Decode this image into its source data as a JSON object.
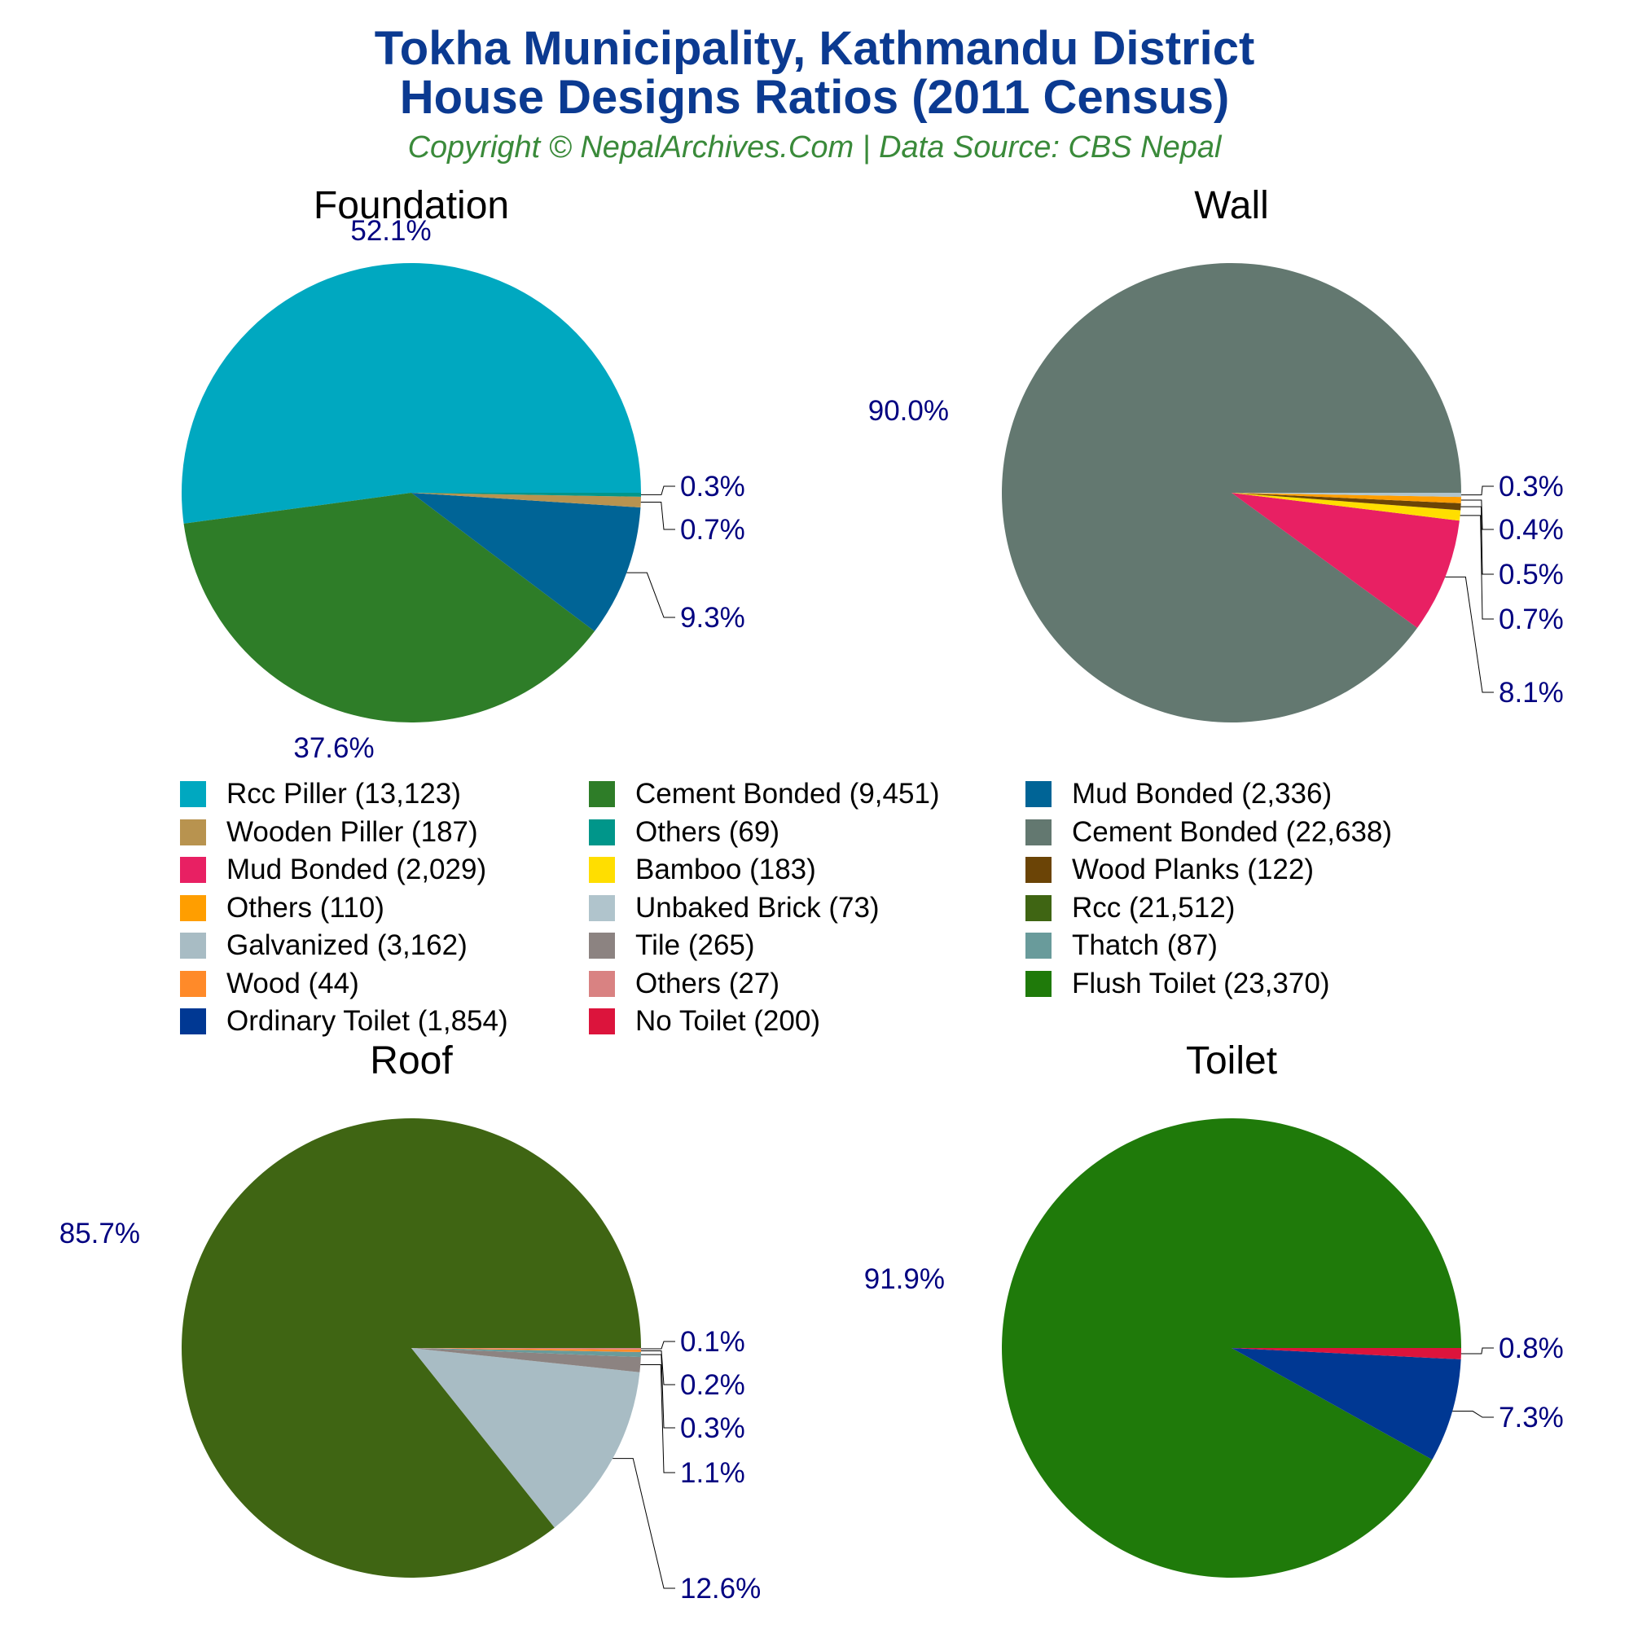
{
  "title_line1": "Tokha Municipality, Kathmandu District",
  "title_line2": "House Designs Ratios (2011 Census)",
  "subtitle": "Copyright © NepalArchives.Com | Data Source: CBS Nepal",
  "chart_data": [
    {
      "type": "pie",
      "title": "Foundation",
      "slices": [
        {
          "name": "Rcc Piller",
          "value": 13123,
          "label": "52.1%",
          "color": "#00a8c0"
        },
        {
          "name": "Cement Bonded",
          "value": 9451,
          "label": "37.6%",
          "color": "#2e7d28"
        },
        {
          "name": "Mud Bonded",
          "value": 2336,
          "label": "9.3%",
          "color": "#006496"
        },
        {
          "name": "Wooden Piller",
          "value": 187,
          "label": "0.7%",
          "color": "#b8934f"
        },
        {
          "name": "Others",
          "value": 69,
          "label": "0.3%",
          "color": "#00968a"
        }
      ]
    },
    {
      "type": "pie",
      "title": "Wall",
      "slices": [
        {
          "name": "Cement Bonded",
          "value": 22638,
          "label": "90.0%",
          "color": "#637870"
        },
        {
          "name": "Mud Bonded",
          "value": 2029,
          "label": "8.1%",
          "color": "#e82063"
        },
        {
          "name": "Bamboo",
          "value": 183,
          "label": "0.7%",
          "color": "#ffde00"
        },
        {
          "name": "Wood Planks",
          "value": 122,
          "label": "0.5%",
          "color": "#6b4406"
        },
        {
          "name": "Others",
          "value": 110,
          "label": "0.4%",
          "color": "#ff9e00"
        },
        {
          "name": "Unbaked Brick",
          "value": 73,
          "label": "0.3%",
          "color": "#b0c4cc"
        }
      ]
    },
    {
      "type": "pie",
      "title": "Roof",
      "slices": [
        {
          "name": "Rcc",
          "value": 21512,
          "label": "85.7%",
          "color": "#3f6513"
        },
        {
          "name": "Galvanized",
          "value": 3162,
          "label": "12.6%",
          "color": "#a8bcc4"
        },
        {
          "name": "Tile",
          "value": 265,
          "label": "1.1%",
          "color": "#8c8381"
        },
        {
          "name": "Thatch",
          "value": 87,
          "label": "0.3%",
          "color": "#699b9b"
        },
        {
          "name": "Wood",
          "value": 44,
          "label": "0.2%",
          "color": "#ff8a29"
        },
        {
          "name": "Others",
          "value": 27,
          "label": "0.1%",
          "color": "#d98282"
        }
      ]
    },
    {
      "type": "pie",
      "title": "Toilet",
      "slices": [
        {
          "name": "Flush Toilet",
          "value": 23370,
          "label": "91.9%",
          "color": "#1f7a0a"
        },
        {
          "name": "Ordinary Toilet",
          "value": 1854,
          "label": "7.3%",
          "color": "#003893"
        },
        {
          "name": "No Toilet",
          "value": 200,
          "label": "0.8%",
          "color": "#dc143c"
        }
      ]
    }
  ],
  "legend": [
    {
      "label": "Rcc Piller (13,123)",
      "color": "#00a8c0"
    },
    {
      "label": "Cement Bonded (9,451)",
      "color": "#2e7d28"
    },
    {
      "label": "Mud Bonded (2,336)",
      "color": "#006496"
    },
    {
      "label": "Wooden Piller (187)",
      "color": "#b8934f"
    },
    {
      "label": "Others (69)",
      "color": "#00968a"
    },
    {
      "label": "Cement Bonded (22,638)",
      "color": "#637870"
    },
    {
      "label": "Mud Bonded (2,029)",
      "color": "#e82063"
    },
    {
      "label": "Bamboo (183)",
      "color": "#ffde00"
    },
    {
      "label": "Wood Planks (122)",
      "color": "#6b4406"
    },
    {
      "label": "Others (110)",
      "color": "#ff9e00"
    },
    {
      "label": "Unbaked Brick (73)",
      "color": "#b0c4cc"
    },
    {
      "label": "Rcc (21,512)",
      "color": "#3f6513"
    },
    {
      "label": "Galvanized (3,162)",
      "color": "#a8bcc4"
    },
    {
      "label": "Tile (265)",
      "color": "#8c8381"
    },
    {
      "label": "Thatch (87)",
      "color": "#699b9b"
    },
    {
      "label": "Wood (44)",
      "color": "#ff8a29"
    },
    {
      "label": "Others (27)",
      "color": "#d98282"
    },
    {
      "label": "Flush Toilet (23,370)",
      "color": "#1f7a0a"
    },
    {
      "label": "Ordinary Toilet (1,854)",
      "color": "#003893"
    },
    {
      "label": "No Toilet (200)",
      "color": "#dc143c"
    }
  ]
}
